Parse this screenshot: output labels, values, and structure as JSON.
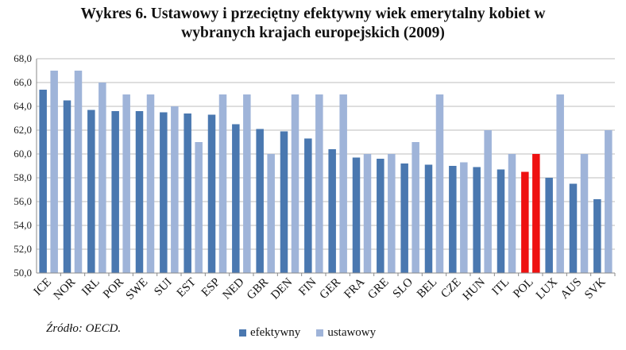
{
  "title_line1": "Wykres 6. Ustawowy i przeciętny efektywny wiek emerytalny kobiet w",
  "title_line2": "wybranych krajach europejskich (2009)",
  "source": "Źródło: OECD.",
  "colors": {
    "efektywny": "#4a78b0",
    "ustawowy": "#9fb4d9",
    "highlight": "#ee1111",
    "grid": "#bcbcbc",
    "axis": "#8a8a8a"
  },
  "chart_data": {
    "type": "bar",
    "title": "Wykres 6. Ustawowy i przeciętny efektywny wiek emerytalny kobiet w wybranych krajach europejskich (2009)",
    "categories": [
      "ICE",
      "NOR",
      "IRL",
      "POR",
      "SWE",
      "SUI",
      "EST",
      "ESP",
      "NED",
      "GBR",
      "DEN",
      "FIN",
      "GER",
      "FRA",
      "GRE",
      "SLO",
      "BEL",
      "CZE",
      "HUN",
      "ITL",
      "POL",
      "LUX",
      "AUS",
      "SVK"
    ],
    "series": [
      {
        "name": "efektywny",
        "values": [
          65.4,
          64.5,
          63.7,
          63.6,
          63.6,
          63.5,
          63.4,
          63.3,
          62.5,
          62.1,
          61.9,
          61.3,
          60.4,
          59.7,
          59.6,
          59.2,
          59.1,
          59.0,
          58.9,
          58.7,
          58.5,
          58.0,
          57.5,
          56.2
        ]
      },
      {
        "name": "ustawowy",
        "values": [
          67,
          67,
          66,
          65,
          65,
          64,
          61,
          65,
          65,
          60,
          65,
          65,
          65,
          60,
          60,
          61,
          65,
          59.3,
          62,
          60,
          60,
          65,
          60,
          62
        ]
      }
    ],
    "highlight_category": "POL",
    "ylim": [
      50,
      68
    ],
    "yticks": [
      "50,0",
      "52,0",
      "54,0",
      "56,0",
      "58,0",
      "60,0",
      "62,0",
      "64,0",
      "66,0",
      "68,0"
    ],
    "grid": true,
    "legend_position": "bottom"
  }
}
